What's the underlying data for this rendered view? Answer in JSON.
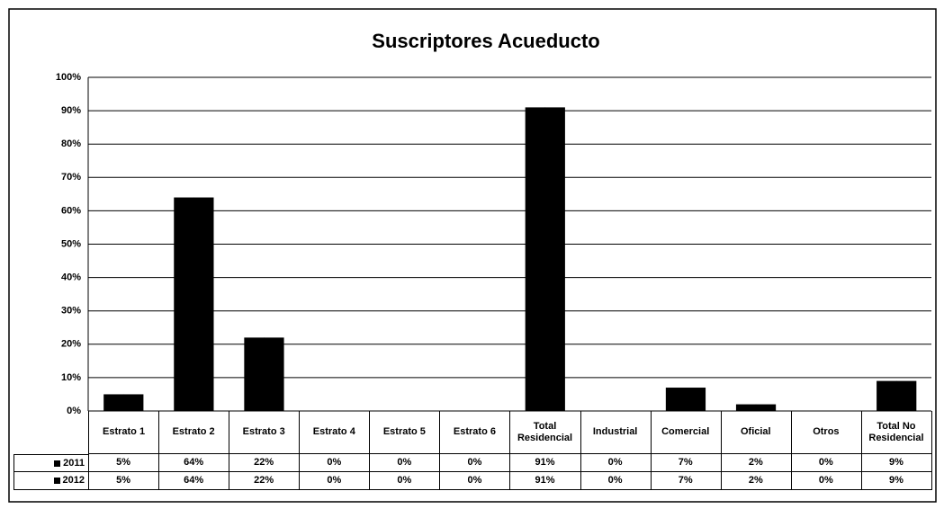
{
  "chart_data": {
    "type": "bar",
    "title": "Suscriptores Acueducto",
    "categories": [
      "Estrato 1",
      "Estrato 2",
      "Estrato 3",
      "Estrato 4",
      "Estrato 5",
      "Estrato 6",
      "Total Residencial",
      "Industrial",
      "Comercial",
      "Oficial",
      "Otros",
      "Total No Residencial"
    ],
    "series": [
      {
        "name": "2011",
        "color": "#000000",
        "values": [
          5,
          64,
          22,
          0,
          0,
          0,
          91,
          0,
          7,
          2,
          0,
          9
        ],
        "value_labels": [
          "5%",
          "64%",
          "22%",
          "0%",
          "0%",
          "0%",
          "91%",
          "0%",
          "7%",
          "2%",
          "0%",
          "9%"
        ]
      },
      {
        "name": "2012",
        "color": "#000000",
        "values": [
          5,
          64,
          22,
          0,
          0,
          0,
          91,
          0,
          7,
          2,
          0,
          9
        ],
        "value_labels": [
          "5%",
          "64%",
          "22%",
          "0%",
          "0%",
          "0%",
          "91%",
          "0%",
          "7%",
          "2%",
          "0%",
          "9%"
        ]
      }
    ],
    "ylim": [
      0,
      100
    ],
    "yticks": [
      {
        "value": 0,
        "label": "0%"
      },
      {
        "value": 10,
        "label": "10%"
      },
      {
        "value": 20,
        "label": "20%"
      },
      {
        "value": 30,
        "label": "30%"
      },
      {
        "value": 40,
        "label": "40%"
      },
      {
        "value": 50,
        "label": "50%"
      },
      {
        "value": 60,
        "label": "60%"
      },
      {
        "value": 70,
        "label": "70%"
      },
      {
        "value": 80,
        "label": "80%"
      },
      {
        "value": 90,
        "label": "90%"
      },
      {
        "value": 100,
        "label": "100%"
      }
    ],
    "grid": true
  }
}
